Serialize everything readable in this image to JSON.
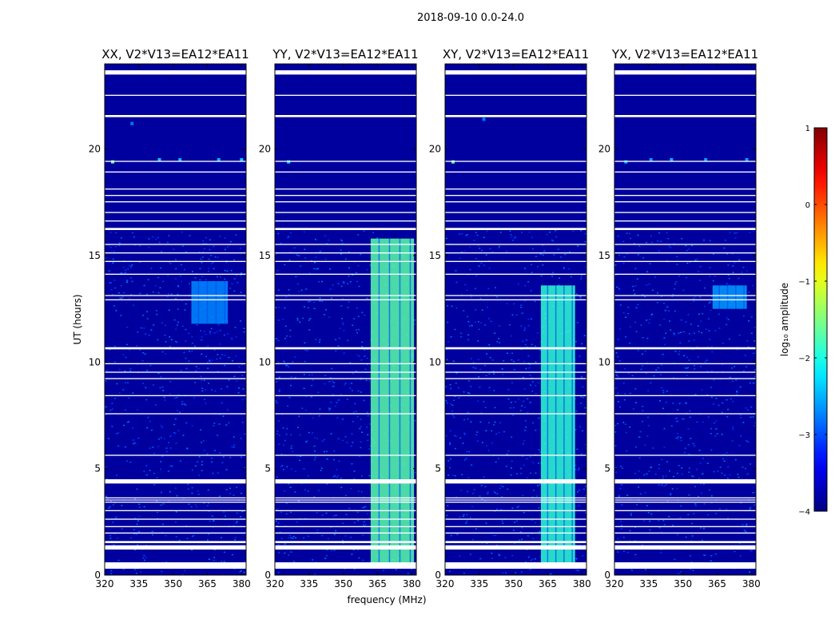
{
  "suptitle": "2018-09-10 0.0-24.0",
  "chart_data": {
    "type": "heatmap",
    "xlabel": "frequency (MHz)",
    "ylabel": "UT (hours)",
    "xlim": [
      320,
      382
    ],
    "ylim": [
      0,
      24
    ],
    "xticks": [
      320,
      335,
      350,
      365,
      380
    ],
    "yticks": [
      0,
      5,
      10,
      15,
      20
    ],
    "colorbar": {
      "label": "log₁₀ amplitude",
      "range": [
        -4,
        1
      ],
      "ticks": [
        1,
        0,
        -1,
        -2,
        -3,
        -4
      ],
      "colormap": "jet"
    },
    "flagged_ut_bands": [
      [
        0.3,
        0.6
      ],
      [
        1.2,
        1.4
      ],
      [
        1.5,
        1.6
      ],
      [
        1.95,
        2.0
      ],
      [
        2.25,
        2.3
      ],
      [
        2.6,
        2.65
      ],
      [
        3.0,
        3.05
      ],
      [
        3.4,
        3.45
      ],
      [
        3.5,
        3.55
      ],
      [
        3.6,
        3.65
      ],
      [
        4.3,
        4.5
      ],
      [
        5.6,
        5.65
      ],
      [
        7.55,
        7.6
      ],
      [
        8.4,
        8.45
      ],
      [
        9.2,
        9.25
      ],
      [
        9.5,
        9.55
      ],
      [
        9.9,
        9.95
      ],
      [
        10.6,
        10.7
      ],
      [
        12.9,
        12.95
      ],
      [
        13.1,
        13.15
      ],
      [
        14.1,
        14.15
      ],
      [
        14.7,
        14.75
      ],
      [
        15.1,
        15.15
      ],
      [
        15.5,
        15.55
      ],
      [
        16.2,
        16.3
      ],
      [
        16.6,
        16.65
      ],
      [
        17.0,
        17.05
      ],
      [
        17.5,
        17.55
      ],
      [
        17.8,
        17.85
      ],
      [
        18.1,
        18.15
      ],
      [
        18.9,
        18.95
      ],
      [
        19.4,
        19.45
      ],
      [
        21.5,
        21.6
      ],
      [
        22.5,
        22.55
      ],
      [
        23.5,
        23.7
      ]
    ],
    "panels": [
      {
        "title": "XX, V2*V13=EA12*EA11",
        "rfi_blocks": [
          [
            358,
            374,
            11.8,
            13.8,
            -2.7
          ]
        ],
        "rfi_points": [
          [
            323.5,
            19.4,
            -1.6
          ],
          [
            344,
            19.5,
            -2.4
          ],
          [
            353,
            19.5,
            -2.5
          ],
          [
            370,
            19.5,
            -2.5
          ],
          [
            380,
            19.5,
            -2.4
          ],
          [
            332,
            21.2,
            -2.8
          ]
        ]
      },
      {
        "title": "YY, V2*V13=EA12*EA11",
        "rfi_blocks": [
          [
            362,
            381,
            0.3,
            15.8,
            -1.7
          ]
        ],
        "rfi_points": [
          [
            326,
            19.4,
            -2.3
          ]
        ]
      },
      {
        "title": "XY, V2*V13=EA12*EA11",
        "rfi_blocks": [
          [
            362,
            377,
            0.3,
            13.6,
            -1.9
          ]
        ],
        "rfi_points": [
          [
            323.5,
            19.4,
            -1.6
          ],
          [
            337,
            21.4,
            -2.8
          ]
        ]
      },
      {
        "title": "YX, V2*V13=EA12*EA11",
        "rfi_blocks": [
          [
            363,
            378,
            12.5,
            13.6,
            -2.6
          ]
        ],
        "rfi_points": [
          [
            325,
            19.4,
            -2.5
          ],
          [
            336,
            19.5,
            -2.6
          ],
          [
            345,
            19.5,
            -2.5
          ],
          [
            360,
            19.5,
            -2.6
          ],
          [
            378,
            19.5,
            -2.6
          ]
        ]
      }
    ]
  }
}
